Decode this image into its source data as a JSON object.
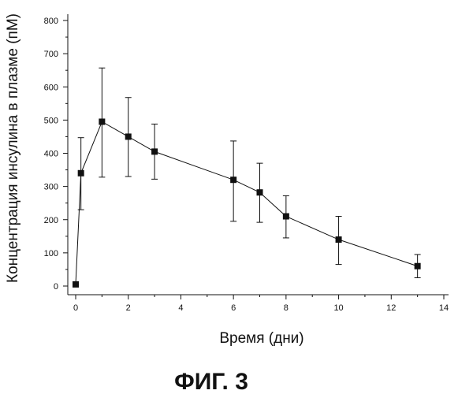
{
  "chart_data": {
    "type": "scatter",
    "title": "",
    "xlabel": "Время (дни)",
    "ylabel": "Концентрация инсулина в плазме (пМ)",
    "xlim": [
      0,
      14
    ],
    "ylim": [
      0,
      800
    ],
    "x_ticks": [
      "0",
      "2",
      "4",
      "6",
      "8",
      "10",
      "12",
      "14"
    ],
    "y_ticks": [
      "0",
      "100",
      "200",
      "300",
      "400",
      "500",
      "600",
      "700",
      "800"
    ],
    "grid": false,
    "legend": "none",
    "series": [
      {
        "x": [
          0,
          0.2,
          1,
          2,
          3,
          6,
          7,
          8,
          10,
          13
        ],
        "y": [
          5,
          340,
          495,
          450,
          405,
          320,
          282,
          210,
          140,
          60
        ],
        "err_low": [
          5,
          230,
          328,
          330,
          322,
          195,
          192,
          145,
          65,
          25
        ],
        "err_high": [
          5,
          447,
          657,
          568,
          488,
          437,
          370,
          272,
          210,
          95
        ],
        "marker": "square",
        "color": "#111111"
      }
    ]
  },
  "caption": "ФИГ. 3"
}
